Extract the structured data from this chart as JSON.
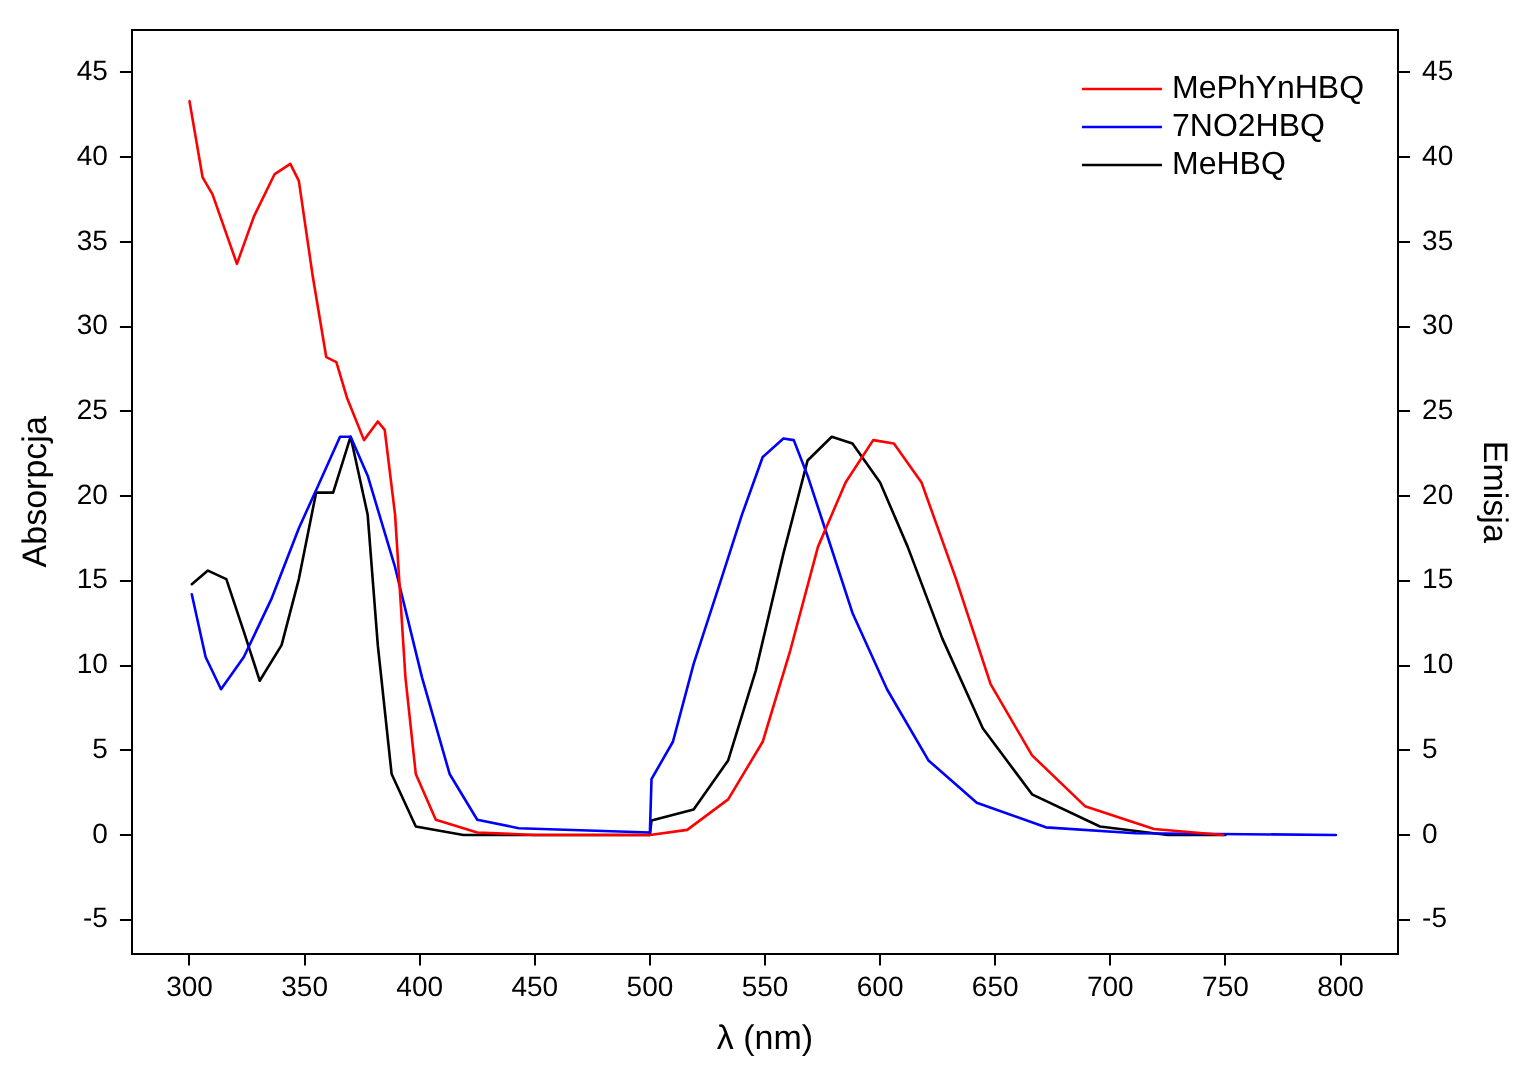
{
  "chart_data": {
    "type": "line",
    "xlabel": "λ (nm)",
    "ylabel": "Absorpcja",
    "y2label": "Emisja",
    "xlim": [
      275,
      825
    ],
    "xticks": [
      300,
      350,
      400,
      450,
      500,
      550,
      600,
      650,
      700,
      750,
      800
    ],
    "ylim": [
      -7,
      47.5
    ],
    "yticks": [
      -5,
      0,
      5,
      10,
      15,
      20,
      25,
      30,
      35,
      40,
      45
    ],
    "y2lim": [
      -7,
      47.5
    ],
    "y2ticks": [
      -5,
      0,
      5,
      10,
      15,
      20,
      25,
      30,
      35,
      40,
      45
    ],
    "legend": "top right",
    "marker": "none",
    "line_style": "solid",
    "series": [
      {
        "name": "MePhYnHBQ",
        "color": "#ff0000",
        "x": [
          300,
          305.7,
          310,
          320.6,
          328,
          337,
          343.8,
          347.5,
          353.5,
          359.4,
          363.8,
          368.4,
          375.8,
          381.8,
          384.8,
          389.3,
          393.8,
          398.3,
          407,
          425,
          450,
          500,
          516.2,
          534,
          549,
          561,
          573,
          585,
          597,
          606,
          618,
          633,
          648,
          666,
          689,
          719,
          749
        ],
        "values": [
          43.3,
          38.8,
          37.8,
          33.7,
          36.5,
          39,
          39.6,
          38.6,
          33,
          28.2,
          27.9,
          25.8,
          23.3,
          24.4,
          23.9,
          18.9,
          9.3,
          3.6,
          0.9,
          0.15,
          0,
          0,
          0.3,
          2.1,
          5.5,
          10.9,
          17,
          20.8,
          23.3,
          23.1,
          20.8,
          15.1,
          8.9,
          4.7,
          1.7,
          0.35,
          0
        ]
      },
      {
        "name": "7NO2HBQ",
        "color": "#0000ff",
        "x": [
          301,
          307,
          313.7,
          323.6,
          335.5,
          347.5,
          356.5,
          365.4,
          370,
          377.4,
          389.3,
          401,
          413,
          425,
          443,
          500,
          500.7,
          510,
          519,
          531,
          540,
          549,
          558,
          562.5,
          568.5,
          576,
          588,
          603,
          621,
          642,
          672,
          711,
          798
        ],
        "values": [
          14.2,
          10.5,
          8.6,
          10.5,
          13.9,
          18.1,
          20.8,
          23.5,
          23.5,
          21.2,
          15.8,
          9.3,
          3.6,
          0.9,
          0.4,
          0.15,
          3.3,
          5.5,
          10.1,
          15.1,
          18.9,
          22.3,
          23.4,
          23.3,
          21.2,
          18.1,
          13.1,
          8.6,
          4.4,
          1.9,
          0.45,
          0.1,
          0
        ]
      },
      {
        "name": "MeHBQ",
        "color": "#000000",
        "x": [
          301,
          308,
          316,
          323.6,
          330.5,
          340,
          347.5,
          355,
          362.4,
          370,
          377.4,
          381.8,
          387.8,
          398.3,
          419,
          500,
          500.7,
          519,
          534,
          546,
          558,
          568.5,
          579,
          588,
          600,
          612,
          627,
          644.6,
          666,
          695.5,
          725,
          750
        ],
        "values": [
          14.8,
          15.6,
          15.1,
          12,
          9.1,
          11.2,
          15.1,
          20.2,
          20.2,
          23.5,
          18.9,
          11.2,
          3.6,
          0.5,
          0,
          0,
          0.85,
          1.5,
          4.4,
          9.7,
          16.6,
          22.1,
          23.5,
          23.1,
          20.8,
          17,
          11.6,
          6.3,
          2.4,
          0.5,
          0,
          0
        ]
      }
    ]
  }
}
